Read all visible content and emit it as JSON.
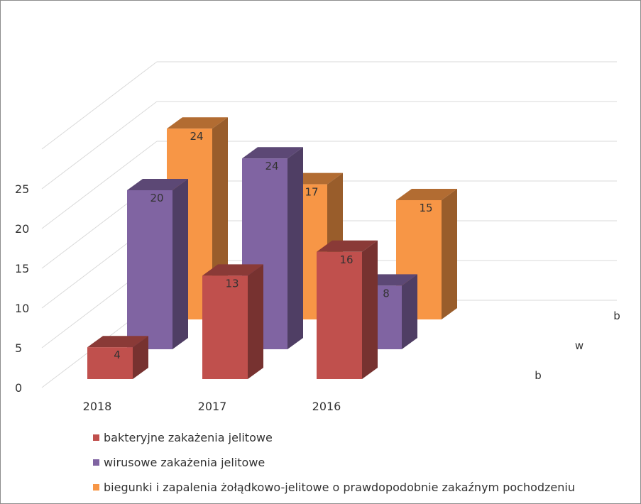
{
  "chart_data": {
    "type": "bar",
    "title": "",
    "xlabel": "",
    "ylabel": "",
    "ylim": [
      0,
      25
    ],
    "yticks": [
      0,
      5,
      10,
      15,
      20,
      25
    ],
    "categories": [
      "2018",
      "2017",
      "2016"
    ],
    "series": [
      {
        "name": "bakteryjne zakażenia jelitowe",
        "color": "#c0504d",
        "values": [
          4,
          13,
          16
        ]
      },
      {
        "name": "wirusowe zakażenia jelitowe",
        "color": "#8064a2",
        "values": [
          20,
          24,
          8
        ]
      },
      {
        "name": "biegunki i zapalenia żołądkowo-jelitowe o prawdopodobnie zakaźnym pochodzeniu",
        "color": "#f79646",
        "values": [
          24,
          17,
          15
        ]
      }
    ],
    "depth_axis_labels": [
      "b",
      "w",
      "b"
    ],
    "grid": true,
    "legend_position": "bottom"
  }
}
